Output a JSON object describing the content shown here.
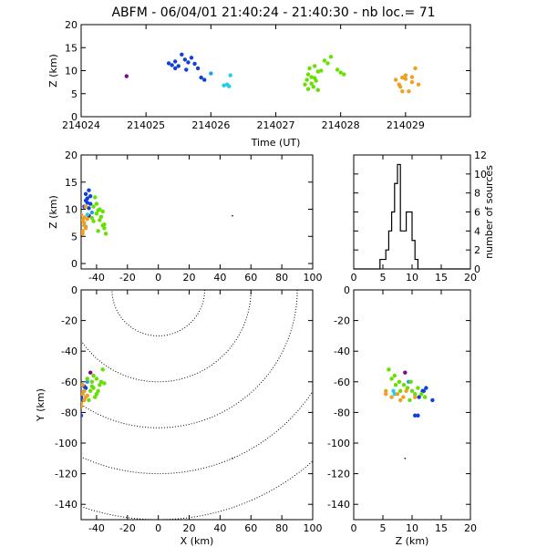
{
  "title": "ABFM - 06/04/01 21:40:24 - 21:40:30 - nb loc.=      71",
  "colors": {
    "purple": "#7a0a8c",
    "blue": "#1040d8",
    "lightblue": "#1ea0f0",
    "cyan": "#20d0e8",
    "green": "#66e000",
    "orange": "#f0a020",
    "black": "#000000"
  },
  "chart_data": [
    {
      "type": "scatter",
      "id": "time-height",
      "xlabel": "Time (UT)",
      "ylabel": "Z (km)",
      "xlim": [
        214024,
        214030
      ],
      "ylim": [
        0,
        20
      ],
      "xticks": [
        214024,
        214025,
        214026,
        214027,
        214028,
        214029
      ],
      "yticks": [
        0,
        5,
        10,
        15,
        20
      ],
      "series": [
        {
          "color": "purple",
          "points": [
            [
              214024.7,
              8.8
            ]
          ]
        },
        {
          "color": "blue",
          "points": [
            [
              214025.35,
              11.6
            ],
            [
              214025.4,
              11.2
            ],
            [
              214025.45,
              12.0
            ],
            [
              214025.55,
              13.5
            ],
            [
              214025.6,
              12.4
            ],
            [
              214025.65,
              11.8
            ],
            [
              214025.7,
              12.8
            ],
            [
              214025.75,
              11.5
            ],
            [
              214025.8,
              10.5
            ],
            [
              214025.85,
              8.5
            ],
            [
              214025.9,
              8.0
            ],
            [
              214025.45,
              10.5
            ],
            [
              214025.5,
              11.0
            ],
            [
              214025.62,
              10.2
            ]
          ]
        },
        {
          "color": "lightblue",
          "points": [
            [
              214026.0,
              9.4
            ]
          ]
        },
        {
          "color": "cyan",
          "points": [
            [
              214026.2,
              6.8
            ],
            [
              214026.25,
              7.0
            ],
            [
              214026.3,
              9.0
            ],
            [
              214026.28,
              6.6
            ]
          ]
        },
        {
          "color": "green",
          "points": [
            [
              214027.45,
              7.0
            ],
            [
              214027.48,
              8.0
            ],
            [
              214027.5,
              9.2
            ],
            [
              214027.52,
              10.5
            ],
            [
              214027.55,
              8.6
            ],
            [
              214027.58,
              6.5
            ],
            [
              214027.6,
              11.0
            ],
            [
              214027.62,
              7.8
            ],
            [
              214027.65,
              9.8
            ],
            [
              214027.7,
              10.0
            ],
            [
              214027.75,
              12.2
            ],
            [
              214027.8,
              11.6
            ],
            [
              214027.85,
              13.0
            ],
            [
              214027.95,
              10.2
            ],
            [
              214028.0,
              9.6
            ],
            [
              214027.5,
              6.0
            ],
            [
              214027.55,
              7.2
            ],
            [
              214027.65,
              5.8
            ],
            [
              214028.05,
              9.2
            ],
            [
              214027.6,
              8.4
            ]
          ]
        },
        {
          "color": "orange",
          "points": [
            [
              214028.85,
              8.0
            ],
            [
              214028.9,
              7.0
            ],
            [
              214028.92,
              6.5
            ],
            [
              214028.95,
              8.5
            ],
            [
              214029.0,
              8.2
            ],
            [
              214029.05,
              5.5
            ],
            [
              214029.1,
              7.5
            ],
            [
              214029.15,
              10.5
            ],
            [
              214029.2,
              7.0
            ],
            [
              214029.1,
              8.6
            ],
            [
              214028.95,
              5.5
            ],
            [
              214029.0,
              9.0
            ]
          ]
        }
      ]
    },
    {
      "type": "scatter",
      "id": "x-height",
      "xlabel": "",
      "ylabel": "Z (km)",
      "xlim": [
        -50,
        100
      ],
      "ylim": [
        -1,
        20
      ],
      "xticks": [
        -40,
        -20,
        0,
        20,
        40,
        60,
        80,
        100
      ],
      "yticks": [
        0,
        5,
        10,
        15,
        20
      ],
      "series": [
        {
          "color": "purple",
          "points": [
            [
              -45,
              8.8
            ]
          ]
        },
        {
          "color": "blue",
          "points": [
            [
              -47,
              11.6
            ],
            [
              -46,
              12.0
            ],
            [
              -45,
              13.5
            ],
            [
              -44,
              12.4
            ],
            [
              -46,
              11.2
            ],
            [
              -48,
              10.5
            ],
            [
              -45,
              10.2
            ],
            [
              -44,
              11.0
            ],
            [
              -47,
              12.8
            ]
          ]
        },
        {
          "color": "lightblue",
          "points": [
            [
              -43,
              9.4
            ]
          ]
        },
        {
          "color": "cyan",
          "points": [
            [
              -48,
              7.0
            ],
            [
              -47,
              6.8
            ],
            [
              -46,
              9.0
            ]
          ]
        },
        {
          "color": "green",
          "points": [
            [
              -42,
              10.5
            ],
            [
              -40,
              9.2
            ],
            [
              -38,
              8.0
            ],
            [
              -36,
              7.0
            ],
            [
              -35,
              6.5
            ],
            [
              -40,
              11.0
            ],
            [
              -39,
              9.8
            ],
            [
              -37,
              8.6
            ],
            [
              -34,
              5.5
            ],
            [
              -41,
              12.2
            ],
            [
              -38,
              10.0
            ],
            [
              -36,
              9.6
            ],
            [
              -42,
              7.8
            ],
            [
              -39,
              6.0
            ],
            [
              -35,
              7.2
            ],
            [
              -43,
              8.4
            ]
          ]
        },
        {
          "color": "orange",
          "points": [
            [
              -49,
              8.0
            ],
            [
              -48,
              7.0
            ],
            [
              -47,
              6.5
            ],
            [
              -49,
              5.5
            ],
            [
              -48,
              8.5
            ],
            [
              -50,
              9.0
            ],
            [
              -47,
              10.5
            ],
            [
              -48,
              7.5
            ],
            [
              -49,
              6.0
            ],
            [
              -46,
              8.2
            ]
          ]
        },
        {
          "color": "black",
          "points": [
            [
              48,
              8.8
            ]
          ]
        }
      ]
    },
    {
      "type": "line",
      "id": "height-histogram",
      "xlabel": "",
      "ylabel": "number of sources",
      "xlim": [
        0,
        20
      ],
      "ylim": [
        0,
        12
      ],
      "xticks": [
        0,
        5,
        10,
        15,
        20
      ],
      "yticks": [
        0,
        2,
        4,
        6,
        8,
        10,
        12
      ],
      "bin_width": 0.5,
      "bin_start": 4.5,
      "counts": [
        1,
        1,
        2,
        4,
        6,
        9,
        11,
        4,
        4,
        6,
        6,
        3,
        1,
        0,
        0,
        0
      ]
    },
    {
      "type": "scatter",
      "id": "plan-view",
      "xlabel": "X (km)",
      "ylabel": "Y (km)",
      "xlim": [
        -50,
        100
      ],
      "ylim": [
        -150,
        0
      ],
      "xticks": [
        -40,
        -20,
        0,
        20,
        40,
        60,
        80,
        100
      ],
      "yticks": [
        -140,
        -120,
        -100,
        -80,
        -60,
        -40,
        -20,
        0
      ],
      "range_rings": [
        30,
        60,
        90,
        120,
        150
      ],
      "series": [
        {
          "color": "purple",
          "points": [
            [
              -44,
              -54
            ]
          ]
        },
        {
          "color": "blue",
          "points": [
            [
              -50,
              -70
            ],
            [
              -48,
              -66
            ],
            [
              -47,
              -64
            ],
            [
              -49,
              -72
            ],
            [
              -50,
              -82
            ],
            [
              -48,
              -63
            ]
          ]
        },
        {
          "color": "lightblue",
          "points": [
            [
              -46,
              -60
            ]
          ]
        },
        {
          "color": "cyan",
          "points": [
            [
              -49,
              -68
            ]
          ]
        },
        {
          "color": "green",
          "points": [
            [
              -43,
              -60
            ],
            [
              -42,
              -64
            ],
            [
              -40,
              -58
            ],
            [
              -38,
              -62
            ],
            [
              -36,
              -52
            ],
            [
              -41,
              -70
            ],
            [
              -44,
              -66
            ],
            [
              -39,
              -66
            ],
            [
              -37,
              -60
            ],
            [
              -42,
              -56
            ],
            [
              -45,
              -72
            ],
            [
              -40,
              -68
            ],
            [
              -35,
              -61
            ],
            [
              -43,
              -63
            ],
            [
              -46,
              -58
            ]
          ]
        },
        {
          "color": "orange",
          "points": [
            [
              -50,
              -74
            ],
            [
              -48,
              -72
            ],
            [
              -49,
              -68
            ],
            [
              -47,
              -70
            ],
            [
              -50,
              -76
            ],
            [
              -48,
              -66
            ],
            [
              -46,
              -69
            ],
            [
              -49,
              -62
            ]
          ]
        },
        {
          "color": "black",
          "points": [
            [
              48,
              -110
            ]
          ]
        }
      ]
    },
    {
      "type": "scatter",
      "id": "height-y",
      "xlabel": "Z (km)",
      "ylabel": "",
      "xlim": [
        0,
        20
      ],
      "ylim": [
        -150,
        0
      ],
      "xticks": [
        0,
        5,
        10,
        15,
        20
      ],
      "yticks": [
        -140,
        -120,
        -100,
        -80,
        -60,
        -40,
        -20,
        0
      ],
      "series": [
        {
          "color": "purple",
          "points": [
            [
              8.8,
              -54
            ]
          ]
        },
        {
          "color": "blue",
          "points": [
            [
              11.2,
              -70
            ],
            [
              12.0,
              -66
            ],
            [
              13.5,
              -72
            ],
            [
              12.4,
              -64
            ],
            [
              10.5,
              -82
            ],
            [
              11.0,
              -82
            ],
            [
              11.8,
              -66
            ]
          ]
        },
        {
          "color": "lightblue",
          "points": [
            [
              9.4,
              -60
            ]
          ]
        },
        {
          "color": "cyan",
          "points": [
            [
              7.0,
              -68
            ],
            [
              6.8,
              -66
            ]
          ]
        },
        {
          "color": "green",
          "points": [
            [
              6.0,
              -52
            ],
            [
              7.0,
              -56
            ],
            [
              7.8,
              -60
            ],
            [
              8.6,
              -62
            ],
            [
              9.2,
              -64
            ],
            [
              10.0,
              -66
            ],
            [
              10.5,
              -68
            ],
            [
              11.0,
              -64
            ],
            [
              12.2,
              -70
            ],
            [
              9.8,
              -60
            ],
            [
              8.0,
              -66
            ],
            [
              7.2,
              -62
            ],
            [
              6.5,
              -58
            ],
            [
              11.6,
              -68
            ],
            [
              9.6,
              -72
            ]
          ]
        },
        {
          "color": "orange",
          "points": [
            [
              5.5,
              -66
            ],
            [
              6.5,
              -70
            ],
            [
              7.5,
              -68
            ],
            [
              8.0,
              -72
            ],
            [
              8.5,
              -70
            ],
            [
              9.0,
              -66
            ],
            [
              10.5,
              -70
            ],
            [
              5.5,
              -68
            ]
          ]
        },
        {
          "color": "black",
          "points": [
            [
              8.8,
              -110
            ]
          ]
        }
      ]
    }
  ]
}
